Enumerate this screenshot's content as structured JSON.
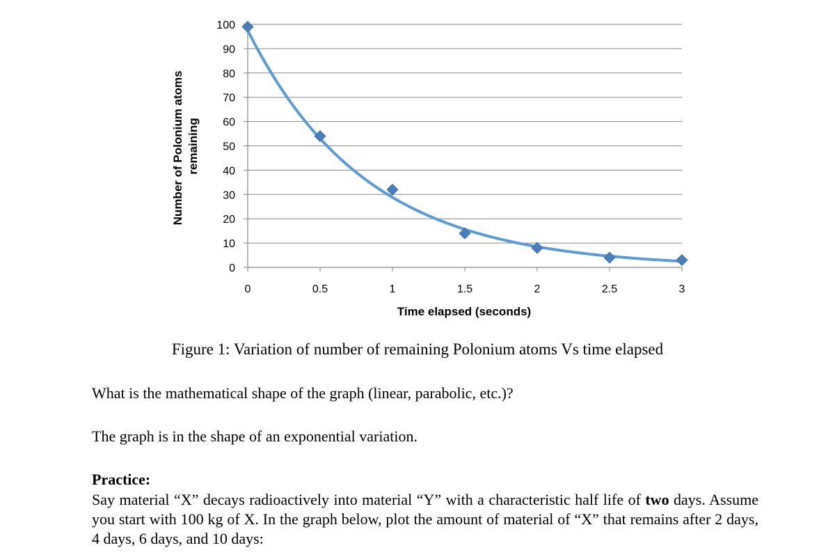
{
  "chart_data": {
    "type": "scatter",
    "xlabel": "Time elapsed (seconds)",
    "ylabel_lines": [
      "Number of Polonium atoms",
      "remaining"
    ],
    "xlim": [
      0,
      3
    ],
    "ylim": [
      0,
      100
    ],
    "xticks": [
      "0",
      "0.5",
      "1",
      "1.5",
      "2",
      "2.5",
      "3"
    ],
    "yticks": [
      "0",
      "10",
      "20",
      "30",
      "40",
      "50",
      "60",
      "70",
      "80",
      "90",
      "100"
    ],
    "grid": "horizontal",
    "points": [
      {
        "x": 0,
        "y": 99
      },
      {
        "x": 0.5,
        "y": 54
      },
      {
        "x": 1,
        "y": 32
      },
      {
        "x": 1.5,
        "y": 14
      },
      {
        "x": 2,
        "y": 8
      },
      {
        "x": 2.5,
        "y": 4
      },
      {
        "x": 3,
        "y": 3
      }
    ],
    "trendline": "exponential",
    "colors": {
      "series": "#4a7ebb",
      "line": "#5b9bd5",
      "grid": "#868686"
    }
  },
  "document": {
    "caption": "Figure 1: Variation of number of remaining Polonium atoms Vs time elapsed",
    "question": "What is the mathematical shape of the graph (linear, parabolic, etc.)?",
    "answer": "The graph is in the shape of an exponential variation.",
    "practice_heading": "Practice:",
    "practice_part1": "Say material “X” decays radioactively into material “Y” with a characteristic half life of ",
    "practice_bold": "two",
    "practice_part2": " days.  Assume you start with 100 kg of X.  In the graph below, plot the amount of material of “X” that remains after 2 days, 4 days, 6 days, and 10 days:"
  }
}
